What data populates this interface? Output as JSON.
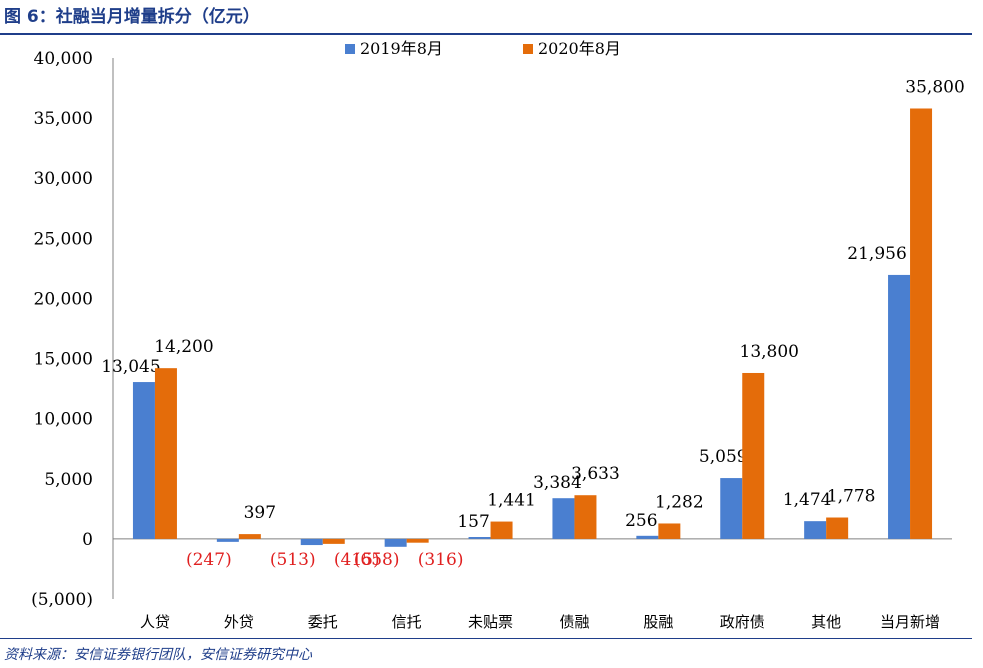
{
  "title": "图 6：社融当月增量拆分（亿元）",
  "source": "资料来源：安信证券银行团队，安信证券研究中心",
  "colors": {
    "series1": "#4a7fd0",
    "series2": "#e46c0a",
    "negative_label": "#e02020",
    "title": "#1f3e8a"
  },
  "chart_data": {
    "type": "bar",
    "categories": [
      "人贷",
      "外贷",
      "委托",
      "信托",
      "未贴票",
      "债融",
      "股融",
      "政府债",
      "其他",
      "当月新增"
    ],
    "series": [
      {
        "name": "2019年8月",
        "values": [
          13045,
          -247,
          -513,
          -658,
          157,
          3384,
          256,
          5059,
          1474,
          21956
        ],
        "labels": [
          "13,045",
          "(247)",
          "(513)",
          "(658)",
          "157",
          "3,384",
          "256",
          "5,059",
          "1,474",
          "21,956"
        ]
      },
      {
        "name": "2020年8月",
        "values": [
          14200,
          397,
          -415,
          -316,
          1441,
          3633,
          1282,
          13800,
          1778,
          35800
        ],
        "labels": [
          "14,200",
          "397",
          "(415)",
          "(316)",
          "1,441",
          "3,633",
          "1,282",
          "13,800",
          "1,778",
          "35,800"
        ]
      }
    ],
    "ylim": [
      -5000,
      40000
    ],
    "yticks": [
      -5000,
      0,
      5000,
      10000,
      15000,
      20000,
      25000,
      30000,
      35000,
      40000
    ],
    "ytick_labels": [
      "(5,000)",
      "0",
      "5,000",
      "10,000",
      "15,000",
      "20,000",
      "25,000",
      "30,000",
      "35,000",
      "40,000"
    ],
    "legend_position": "top-center",
    "grid": false
  }
}
